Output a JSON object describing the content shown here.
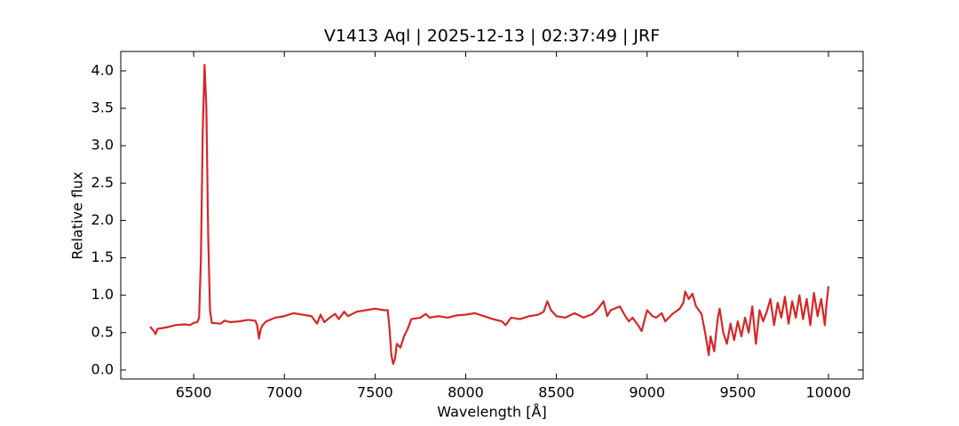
{
  "chart_data": {
    "type": "line",
    "title": "V1413 Aql | 2025-12-13 | 02:37:49 | JRF",
    "xlabel": "Wavelength [Å]",
    "ylabel": "Relative flux",
    "x": [
      6260,
      6280,
      6290,
      6300,
      6350,
      6400,
      6450,
      6480,
      6500,
      6520,
      6530,
      6540,
      6550,
      6560,
      6570,
      6580,
      6590,
      6600,
      6650,
      6670,
      6700,
      6750,
      6800,
      6840,
      6850,
      6860,
      6870,
      6880,
      6900,
      6950,
      7000,
      7050,
      7100,
      7150,
      7180,
      7200,
      7220,
      7250,
      7280,
      7300,
      7330,
      7350,
      7400,
      7450,
      7500,
      7550,
      7570,
      7580,
      7590,
      7600,
      7610,
      7620,
      7640,
      7660,
      7680,
      7700,
      7750,
      7780,
      7800,
      7850,
      7900,
      7950,
      8000,
      8050,
      8100,
      8150,
      8200,
      8220,
      8250,
      8300,
      8350,
      8400,
      8430,
      8450,
      8470,
      8500,
      8550,
      8600,
      8650,
      8700,
      8730,
      8760,
      8780,
      8800,
      8850,
      8880,
      8900,
      8920,
      8950,
      8970,
      9000,
      9030,
      9050,
      9080,
      9100,
      9140,
      9180,
      9200,
      9210,
      9230,
      9250,
      9270,
      9300,
      9320,
      9340,
      9350,
      9370,
      9390,
      9400,
      9420,
      9440,
      9460,
      9480,
      9500,
      9520,
      9540,
      9560,
      9580,
      9600,
      9620,
      9640,
      9660,
      9680,
      9700,
      9720,
      9740,
      9760,
      9780,
      9800,
      9820,
      9840,
      9860,
      9880,
      9900,
      9920,
      9940,
      9960,
      9980,
      9990,
      10000
    ],
    "series": [
      {
        "name": "Relative flux",
        "color": "#d62728",
        "values": [
          0.58,
          0.52,
          0.48,
          0.55,
          0.57,
          0.6,
          0.61,
          0.6,
          0.63,
          0.64,
          0.7,
          1.5,
          3.2,
          4.08,
          3.5,
          1.8,
          0.8,
          0.63,
          0.62,
          0.66,
          0.64,
          0.65,
          0.67,
          0.66,
          0.6,
          0.42,
          0.55,
          0.6,
          0.65,
          0.7,
          0.72,
          0.76,
          0.74,
          0.72,
          0.62,
          0.74,
          0.64,
          0.7,
          0.75,
          0.68,
          0.78,
          0.72,
          0.78,
          0.8,
          0.82,
          0.8,
          0.8,
          0.55,
          0.2,
          0.08,
          0.15,
          0.35,
          0.3,
          0.45,
          0.55,
          0.68,
          0.7,
          0.75,
          0.7,
          0.72,
          0.7,
          0.73,
          0.74,
          0.76,
          0.72,
          0.68,
          0.65,
          0.6,
          0.7,
          0.68,
          0.72,
          0.74,
          0.78,
          0.92,
          0.8,
          0.72,
          0.7,
          0.76,
          0.7,
          0.75,
          0.82,
          0.92,
          0.72,
          0.8,
          0.85,
          0.72,
          0.65,
          0.7,
          0.6,
          0.52,
          0.8,
          0.72,
          0.7,
          0.76,
          0.65,
          0.75,
          0.82,
          0.9,
          1.05,
          0.95,
          1.02,
          0.85,
          0.75,
          0.5,
          0.2,
          0.45,
          0.25,
          0.7,
          0.82,
          0.5,
          0.35,
          0.62,
          0.4,
          0.65,
          0.45,
          0.7,
          0.5,
          0.85,
          0.35,
          0.8,
          0.65,
          0.78,
          0.95,
          0.6,
          0.9,
          0.7,
          0.98,
          0.62,
          0.92,
          0.7,
          1.0,
          0.68,
          0.95,
          0.6,
          1.03,
          0.72,
          0.95,
          0.6,
          0.9,
          1.12
        ]
      }
    ],
    "xlim": [
      6098,
      10191
    ],
    "ylim": [
      -0.12,
      4.26
    ],
    "xticks": [
      6500,
      7000,
      7500,
      8000,
      8500,
      9000,
      9500,
      10000
    ],
    "yticks": [
      {
        "value": 0,
        "label": "0.0"
      },
      0.5,
      {
        "value": 1,
        "label": "1.0"
      },
      1.5,
      {
        "value": 2,
        "label": "2.0"
      },
      2.5,
      {
        "value": 3,
        "label": "3.0"
      },
      3.5,
      {
        "value": 4,
        "label": "4.0"
      }
    ],
    "grid": false
  }
}
